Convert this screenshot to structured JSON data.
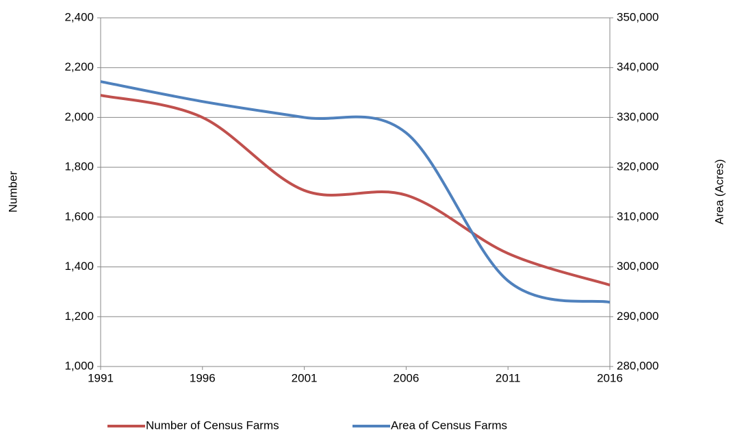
{
  "chart_data": {
    "type": "line",
    "x": [
      1991,
      1996,
      2001,
      2006,
      2011,
      2016
    ],
    "xlim": [
      1991,
      2016
    ],
    "xticks": [
      1991,
      1996,
      2001,
      2006,
      2011,
      2016
    ],
    "ylabel": "Number",
    "y2label": "Area (Acres)",
    "ylim": [
      1000,
      2400
    ],
    "yticks": [
      {
        "value": 1000,
        "label": "1,000"
      },
      {
        "value": 1200,
        "label": "1,200"
      },
      {
        "value": 1400,
        "label": "1,400"
      },
      {
        "value": 1600,
        "label": "1,600"
      },
      {
        "value": 1800,
        "label": "1,800"
      },
      {
        "value": 2000,
        "label": "2,000"
      },
      {
        "value": 2200,
        "label": "2,200"
      },
      {
        "value": 2400,
        "label": "2,400"
      }
    ],
    "y2lim": [
      280000,
      350000
    ],
    "y2ticks": [
      {
        "value": 280000,
        "label": "280,000"
      },
      {
        "value": 290000,
        "label": "290,000"
      },
      {
        "value": 300000,
        "label": "300,000"
      },
      {
        "value": 310000,
        "label": "310,000"
      },
      {
        "value": 320000,
        "label": "320,000"
      },
      {
        "value": 330000,
        "label": "330,000"
      },
      {
        "value": 340000,
        "label": "340,000"
      },
      {
        "value": 350000,
        "label": "350,000"
      }
    ],
    "grid": true,
    "legend": "bottom",
    "series": [
      {
        "name": "Number of Census Farms",
        "color": "#c0504d",
        "values": [
          2089,
          2000,
          1707,
          1688,
          1454,
          1327
        ]
      },
      {
        "name": "Area of Census Farms",
        "color": "#4f81bd",
        "axis": "y2",
        "values": [
          337200,
          333200,
          330000,
          326900,
          297200,
          292900
        ]
      }
    ]
  }
}
